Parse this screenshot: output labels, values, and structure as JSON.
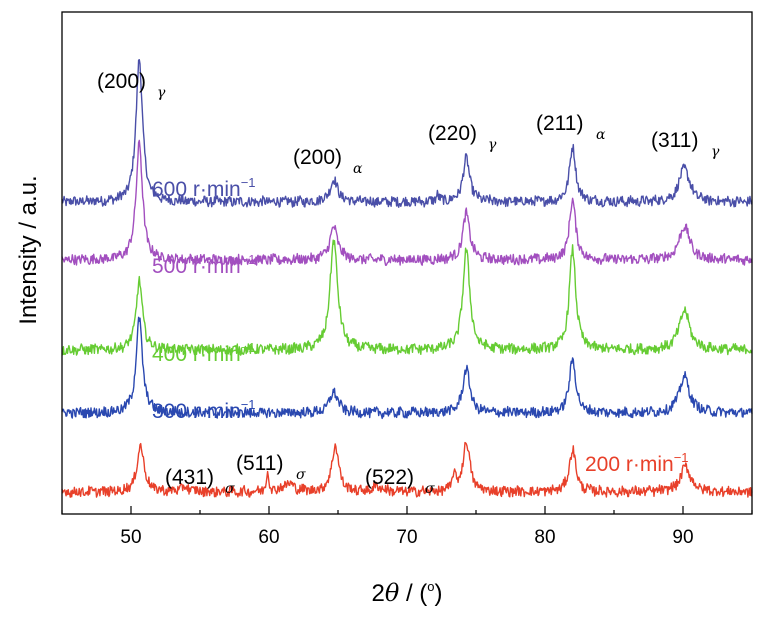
{
  "chart_data": {
    "type": "line",
    "xlabel": "2θ / (°)",
    "xlabel_parts": {
      "two": "2",
      "theta": "θ",
      "rest": " / (",
      "deg": "o",
      "close": ")"
    },
    "ylabel": "Intensity / a.u.",
    "xlim": [
      45,
      95
    ],
    "x_ticks": [
      50,
      60,
      70,
      80,
      90
    ],
    "y_ticks": false,
    "grid": false,
    "series": [
      {
        "name": "600 r·min⁻¹",
        "label_main": "600 r·min",
        "label_sup": "−1",
        "color": "#4a4fa8",
        "offset": 4,
        "peaks": [
          [
            50.6,
            8.0,
            0.28
          ],
          [
            64.7,
            1.2,
            0.35
          ],
          [
            74.3,
            2.4,
            0.3
          ],
          [
            82.0,
            3.0,
            0.28
          ],
          [
            90.1,
            1.9,
            0.45
          ],
          [
            72.2,
            0.4,
            0.12
          ]
        ]
      },
      {
        "name": "500 r·min⁻¹",
        "label_main": "500 r·min",
        "label_sup": "−1",
        "color": "#a24fbf",
        "offset": 3,
        "peaks": [
          [
            50.6,
            6.5,
            0.28
          ],
          [
            64.7,
            1.8,
            0.35
          ],
          [
            74.3,
            2.6,
            0.3
          ],
          [
            82.0,
            3.3,
            0.28
          ],
          [
            90.1,
            1.9,
            0.45
          ]
        ]
      },
      {
        "name": "400 r·min⁻¹",
        "label_main": "400 r·min",
        "label_sup": "−1",
        "color": "#66cc33",
        "offset": 2,
        "peaks": [
          [
            50.6,
            3.8,
            0.28
          ],
          [
            64.7,
            6.1,
            0.33
          ],
          [
            74.3,
            5.6,
            0.3
          ],
          [
            82.0,
            5.6,
            0.28
          ],
          [
            90.1,
            2.2,
            0.45
          ]
        ]
      },
      {
        "name": "300 r·min⁻¹",
        "label_main": "300 r·min",
        "label_sup": "−1",
        "color": "#2a48b0",
        "offset": 1,
        "peaks": [
          [
            50.6,
            5.2,
            0.28
          ],
          [
            64.7,
            1.2,
            0.35
          ],
          [
            74.3,
            2.5,
            0.3
          ],
          [
            82.0,
            3.0,
            0.28
          ],
          [
            90.1,
            2.0,
            0.45
          ]
        ]
      },
      {
        "name": "200 r·min⁻¹",
        "label_main": "200 r·min",
        "label_sup": "−1",
        "color": "#e8402a",
        "offset": 0,
        "peaks": [
          [
            50.7,
            2.6,
            0.3
          ],
          [
            53.9,
            0.25,
            0.4
          ],
          [
            59.9,
            1.0,
            0.12
          ],
          [
            61.4,
            0.45,
            0.5
          ],
          [
            64.8,
            2.6,
            0.3
          ],
          [
            67.9,
            0.3,
            0.4
          ],
          [
            73.4,
            1.0,
            0.12
          ],
          [
            74.3,
            2.8,
            0.3
          ],
          [
            82.0,
            2.4,
            0.28
          ],
          [
            90.2,
            1.4,
            0.45
          ]
        ]
      }
    ],
    "annotations": [
      {
        "main": "(200)",
        "sub": "γ"
      },
      {
        "main": "(200)",
        "sub": "α"
      },
      {
        "main": "(220)",
        "sub": "γ"
      },
      {
        "main": "(211)",
        "sub": "α"
      },
      {
        "main": "(311)",
        "sub": "γ"
      },
      {
        "main": "(431)",
        "sub": "σ"
      },
      {
        "main": "(511)",
        "sub": "σ"
      },
      {
        "main": "(522)",
        "sub": "σ"
      }
    ]
  }
}
